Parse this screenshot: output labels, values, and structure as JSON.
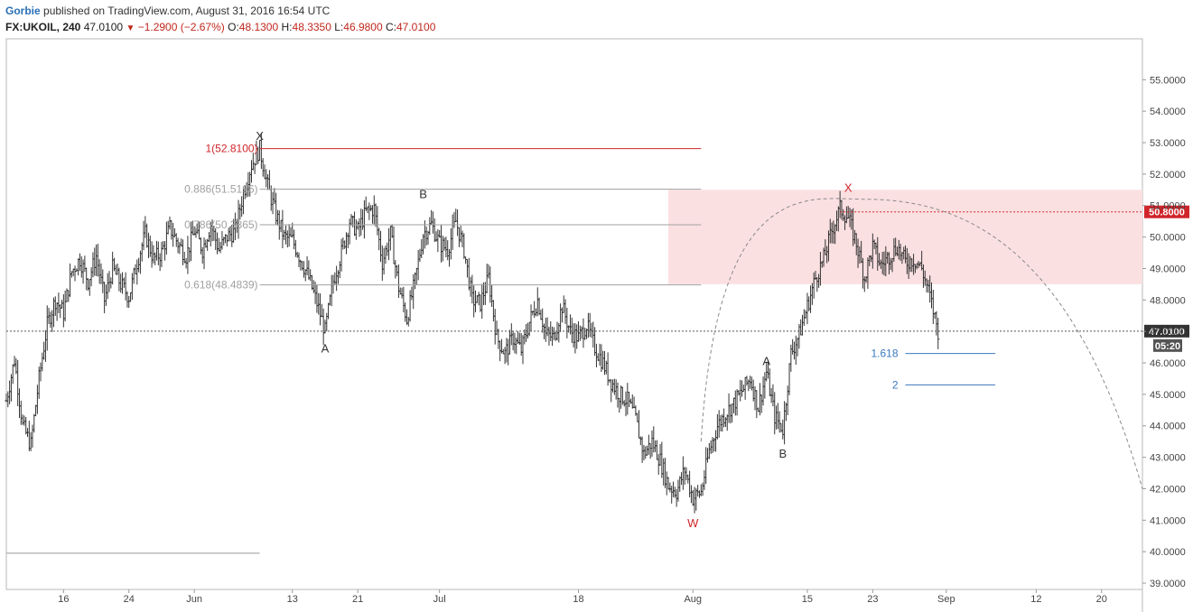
{
  "header": {
    "author": "Gorbie",
    "published": "published on TradingView.com, August 31, 2016 16:54 UTC",
    "symbol": "FX:UKOIL, 240",
    "last": "47.0100",
    "arrow": "▼",
    "change": "−1.2900 (−2.67%)",
    "o_label": "O:",
    "o_value": "48.1300",
    "h_label": "H:",
    "h_value": "48.3350",
    "l_label": "L:",
    "l_value": "46.9800",
    "c_label": "C:",
    "c_value": "47.0100"
  },
  "colors": {
    "bars": "#333333",
    "fib_red": "#d0252a",
    "fib_grey": "#a0a0a0",
    "fib_blue": "#3a78c0",
    "zone": "#fbe0e2",
    "axis_text": "#444444",
    "price_tag_red": "#d0252a",
    "price_tag_dark": "#333333"
  },
  "chart_data": {
    "type": "candlestick-ohlc",
    "y_ticks": [
      39,
      40,
      41,
      42,
      43,
      44,
      45,
      46,
      47,
      48,
      49,
      50,
      51,
      52,
      53,
      54,
      55
    ],
    "y_tick_labels": [
      "39.0000",
      "40.0000",
      "41.0000",
      "42.0000",
      "43.0000",
      "44.0000",
      "45.0000",
      "46.0000",
      "47.0000",
      "48.0000",
      "49.0000",
      "50.0000",
      "51.0000",
      "52.0000",
      "53.0000",
      "54.0000",
      "55.0000"
    ],
    "ylim": [
      38.8,
      56.3
    ],
    "x_domain": [
      "2016-05-09",
      "2016-09-25"
    ],
    "x_ticks": [
      {
        "date": "2016-05-16",
        "label": "16"
      },
      {
        "date": "2016-05-24",
        "label": "24"
      },
      {
        "date": "2016-06-01",
        "label": "Jun"
      },
      {
        "date": "2016-06-13",
        "label": "13"
      },
      {
        "date": "2016-06-21",
        "label": "21"
      },
      {
        "date": "2016-07-01",
        "label": "Jul"
      },
      {
        "date": "2016-07-18",
        "label": "18"
      },
      {
        "date": "2016-08-01",
        "label": "Aug"
      },
      {
        "date": "2016-08-15",
        "label": "15"
      },
      {
        "date": "2016-08-23",
        "label": "23"
      },
      {
        "date": "2016-09-01",
        "label": "Sep"
      },
      {
        "date": "2016-09-12",
        "label": "12"
      },
      {
        "date": "2016-09-20",
        "label": "20"
      }
    ],
    "price_path": [
      [
        "2016-05-09",
        44.8
      ],
      [
        "2016-05-10",
        46.1
      ],
      [
        "2016-05-11",
        44.0
      ],
      [
        "2016-05-12",
        43.4
      ],
      [
        "2016-05-13",
        45.5
      ],
      [
        "2016-05-14",
        47.2
      ],
      [
        "2016-05-15",
        48.0
      ],
      [
        "2016-05-16",
        47.6
      ],
      [
        "2016-05-17",
        48.9
      ],
      [
        "2016-05-18",
        49.3
      ],
      [
        "2016-05-19",
        48.6
      ],
      [
        "2016-05-20",
        49.4
      ],
      [
        "2016-05-21",
        48.0
      ],
      [
        "2016-05-22",
        49.0
      ],
      [
        "2016-05-23",
        48.5
      ],
      [
        "2016-05-24",
        48.1
      ],
      [
        "2016-05-25",
        49.2
      ],
      [
        "2016-05-26",
        50.1
      ],
      [
        "2016-05-27",
        49.3
      ],
      [
        "2016-05-28",
        49.5
      ],
      [
        "2016-05-29",
        50.3
      ],
      [
        "2016-05-30",
        49.8
      ],
      [
        "2016-05-31",
        49.4
      ],
      [
        "2016-06-01",
        50.2
      ],
      [
        "2016-06-02",
        49.6
      ],
      [
        "2016-06-03",
        50.4
      ],
      [
        "2016-06-04",
        49.6
      ],
      [
        "2016-06-05",
        50.0
      ],
      [
        "2016-06-06",
        50.2
      ],
      [
        "2016-06-07",
        51.4
      ],
      [
        "2016-06-08",
        52.3
      ],
      [
        "2016-06-09",
        52.8
      ],
      [
        "2016-06-10",
        51.6
      ],
      [
        "2016-06-11",
        50.7
      ],
      [
        "2016-06-12",
        50.0
      ],
      [
        "2016-06-13",
        49.9
      ],
      [
        "2016-06-14",
        49.3
      ],
      [
        "2016-06-15",
        48.7
      ],
      [
        "2016-06-16",
        47.9
      ],
      [
        "2016-06-17",
        47.0
      ],
      [
        "2016-06-18",
        48.6
      ],
      [
        "2016-06-19",
        49.5
      ],
      [
        "2016-06-20",
        50.5
      ],
      [
        "2016-06-21",
        50.2
      ],
      [
        "2016-06-22",
        50.8
      ],
      [
        "2016-06-23",
        50.9
      ],
      [
        "2016-06-24",
        49.2
      ],
      [
        "2016-06-25",
        50.1
      ],
      [
        "2016-06-26",
        48.4
      ],
      [
        "2016-06-27",
        47.4
      ],
      [
        "2016-06-28",
        48.6
      ],
      [
        "2016-06-29",
        50.1
      ],
      [
        "2016-06-30",
        50.4
      ],
      [
        "2016-07-01",
        49.8
      ],
      [
        "2016-07-02",
        49.6
      ],
      [
        "2016-07-03",
        50.5
      ],
      [
        "2016-07-04",
        49.6
      ],
      [
        "2016-07-05",
        48.0
      ],
      [
        "2016-07-06",
        47.9
      ],
      [
        "2016-07-07",
        48.7
      ],
      [
        "2016-07-08",
        46.8
      ],
      [
        "2016-07-09",
        46.3
      ],
      [
        "2016-07-10",
        46.8
      ],
      [
        "2016-07-11",
        46.4
      ],
      [
        "2016-07-12",
        47.3
      ],
      [
        "2016-07-13",
        48.0
      ],
      [
        "2016-07-14",
        46.9
      ],
      [
        "2016-07-15",
        46.8
      ],
      [
        "2016-07-16",
        47.8
      ],
      [
        "2016-07-17",
        47.0
      ],
      [
        "2016-07-18",
        46.8
      ],
      [
        "2016-07-19",
        47.2
      ],
      [
        "2016-07-20",
        46.5
      ],
      [
        "2016-07-21",
        46.0
      ],
      [
        "2016-07-22",
        45.4
      ],
      [
        "2016-07-23",
        45.0
      ],
      [
        "2016-07-24",
        44.8
      ],
      [
        "2016-07-25",
        44.2
      ],
      [
        "2016-07-26",
        43.1
      ],
      [
        "2016-07-27",
        43.5
      ],
      [
        "2016-07-28",
        42.9
      ],
      [
        "2016-07-29",
        42.1
      ],
      [
        "2016-07-30",
        41.9
      ],
      [
        "2016-07-31",
        42.6
      ],
      [
        "2016-08-01",
        41.7
      ],
      [
        "2016-08-02",
        41.9
      ],
      [
        "2016-08-03",
        43.2
      ],
      [
        "2016-08-04",
        44.0
      ],
      [
        "2016-08-05",
        44.4
      ],
      [
        "2016-08-06",
        44.7
      ],
      [
        "2016-08-07",
        45.1
      ],
      [
        "2016-08-08",
        45.5
      ],
      [
        "2016-08-09",
        44.6
      ],
      [
        "2016-08-10",
        45.7
      ],
      [
        "2016-08-11",
        44.3
      ],
      [
        "2016-08-12",
        43.9
      ],
      [
        "2016-08-13",
        46.3
      ],
      [
        "2016-08-14",
        46.9
      ],
      [
        "2016-08-15",
        47.8
      ],
      [
        "2016-08-16",
        48.7
      ],
      [
        "2016-08-17",
        49.3
      ],
      [
        "2016-08-18",
        50.2
      ],
      [
        "2016-08-19",
        50.9
      ],
      [
        "2016-08-20",
        50.6
      ],
      [
        "2016-08-21",
        49.8
      ],
      [
        "2016-08-22",
        48.7
      ],
      [
        "2016-08-23",
        49.7
      ],
      [
        "2016-08-24",
        49.1
      ],
      [
        "2016-08-25",
        49.4
      ],
      [
        "2016-08-26",
        49.7
      ],
      [
        "2016-08-27",
        49.2
      ],
      [
        "2016-08-28",
        49.3
      ],
      [
        "2016-08-29",
        49.0
      ],
      [
        "2016-08-30",
        48.1
      ],
      [
        "2016-08-31",
        47.0
      ]
    ],
    "fib_levels": [
      {
        "label": "1(52.8100)",
        "price": 52.81,
        "start": "2016-06-09",
        "end": "2016-08-02",
        "color": "red"
      },
      {
        "label": "0.886(51.5196)",
        "price": 51.52,
        "start": "2016-06-09",
        "end": "2016-08-02",
        "color": "grey"
      },
      {
        "label": "0.786(50.3865)",
        "price": 50.39,
        "start": "2016-06-09",
        "end": "2016-08-02",
        "color": "grey"
      },
      {
        "label": "0.618(48.4839)",
        "price": 48.48,
        "start": "2016-06-09",
        "end": "2016-08-02",
        "color": "grey"
      }
    ],
    "projection_levels": [
      {
        "label": "1.618",
        "price": 46.3
      },
      {
        "label": "2",
        "price": 45.3
      }
    ],
    "extension_start": "2016-08-27",
    "extension_end": "2016-09-07",
    "zone": {
      "from": "2016-07-29",
      "to": "2016-09-25",
      "low": 48.5,
      "high": 51.5
    },
    "resistance_line": {
      "price": 50.8,
      "from": "2016-08-19",
      "tag": "50.8000"
    },
    "current_price": {
      "price": 47.01,
      "tag": "47.0100",
      "countdown": "05:20"
    },
    "grey_line": {
      "price": 39.95,
      "from": "2016-05-09",
      "to": "2016-06-09"
    },
    "arc": {
      "start": "2016-08-02",
      "peak": "2016-08-22",
      "end": "2016-09-25",
      "start_price": 43.5,
      "peak_price": 51.2,
      "end_price": 42.0
    },
    "wave_labels": [
      {
        "text": "X",
        "date": "2016-06-09",
        "price": 53.2,
        "color": "dark"
      },
      {
        "text": "A",
        "date": "2016-06-17",
        "price": 46.45,
        "color": "dark"
      },
      {
        "text": "B",
        "date": "2016-06-29",
        "price": 51.35,
        "color": "dark"
      },
      {
        "text": "W",
        "date": "2016-08-01",
        "price": 40.9,
        "color": "red"
      },
      {
        "text": "A",
        "date": "2016-08-10",
        "price": 46.05,
        "color": "dark"
      },
      {
        "text": "B",
        "date": "2016-08-12",
        "price": 43.1,
        "color": "dark"
      },
      {
        "text": "X",
        "date": "2016-08-20",
        "price": 51.55,
        "color": "red"
      }
    ]
  }
}
